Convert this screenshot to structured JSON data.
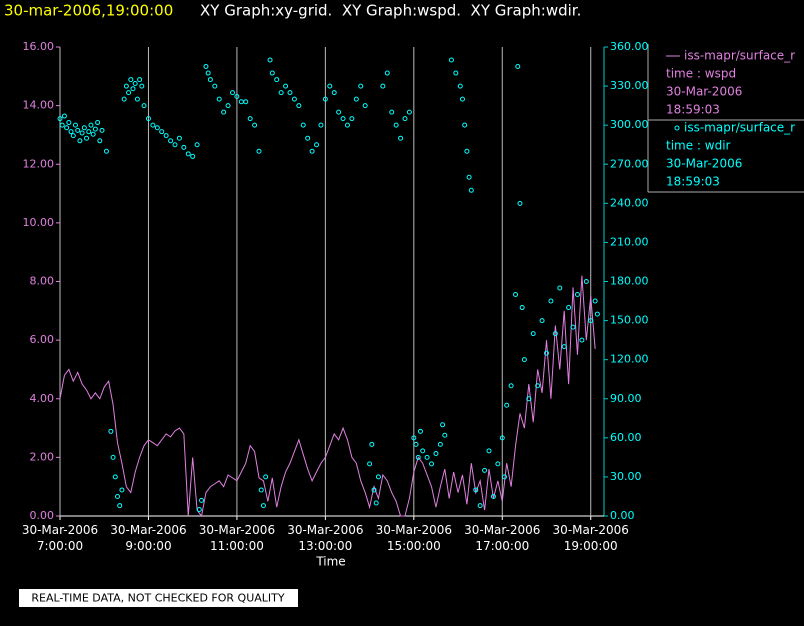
{
  "chart_data": {
    "type": "line_scatter",
    "title_time": "30-mar-2006,19:00:00",
    "title": "XY Graph:xy-grid.  XY Graph:wspd.  XY Graph:wdir.",
    "x_label": "Time",
    "footer": "REAL-TIME DATA, NOT CHECKED FOR QUALITY",
    "xlim": [
      7,
      19.3
    ],
    "xticks": [
      {
        "value": 7,
        "label": "30-Mar-2006\n7:00:00"
      },
      {
        "value": 9,
        "label": "30-Mar-2006\n9:00:00"
      },
      {
        "value": 11,
        "label": "30-Mar-2006\n11:00:00"
      },
      {
        "value": 13,
        "label": "30-Mar-2006\n13:00:00"
      },
      {
        "value": 15,
        "label": "30-Mar-2006\n15:00:00"
      },
      {
        "value": 17,
        "label": "30-Mar-2006\n17:00:00"
      },
      {
        "value": 19,
        "label": "30-Mar-2006\n19:00:00"
      }
    ],
    "grid": true,
    "ylim": [
      0,
      16
    ],
    "yticks": [
      {
        "value": 0,
        "label": "0.00"
      },
      {
        "value": 2,
        "label": "2.00"
      },
      {
        "value": 4,
        "label": "4.00"
      },
      {
        "value": 6,
        "label": "6.00"
      },
      {
        "value": 8,
        "label": "8.00"
      },
      {
        "value": 10,
        "label": "10.00"
      },
      {
        "value": 12,
        "label": "12.00"
      },
      {
        "value": 14,
        "label": "14.00"
      },
      {
        "value": 16,
        "label": "16.00"
      }
    ],
    "y2lim": [
      0,
      360
    ],
    "y2ticks": [
      {
        "value": 0,
        "label": "0.00"
      },
      {
        "value": 30,
        "label": "30.00"
      },
      {
        "value": 60,
        "label": "60.00"
      },
      {
        "value": 90,
        "label": "90.00"
      },
      {
        "value": 120,
        "label": "120.00"
      },
      {
        "value": 150,
        "label": "150.00"
      },
      {
        "value": 180,
        "label": "180.00"
      },
      {
        "value": 210,
        "label": "210.00"
      },
      {
        "value": 240,
        "label": "240.00"
      },
      {
        "value": 270,
        "label": "270.00"
      },
      {
        "value": 300,
        "label": "300.00"
      },
      {
        "value": 330,
        "label": "330.00"
      },
      {
        "value": 360,
        "label": "360.00"
      }
    ],
    "series": [
      {
        "name": "iss-mapr/surface_r",
        "kind": "line",
        "axis": "y",
        "color": "#e080e0",
        "legend_lines": [
          "time : wspd",
          "30-Mar-2006",
          "18:59:03"
        ],
        "x": [
          7.0,
          7.1,
          7.2,
          7.3,
          7.4,
          7.5,
          7.6,
          7.7,
          7.8,
          7.9,
          8.0,
          8.1,
          8.2,
          8.3,
          8.4,
          8.5,
          8.6,
          8.7,
          8.8,
          8.9,
          9.0,
          9.1,
          9.2,
          9.3,
          9.4,
          9.5,
          9.6,
          9.7,
          9.8,
          9.9,
          10.0,
          10.1,
          10.2,
          10.3,
          10.4,
          10.5,
          10.6,
          10.7,
          10.8,
          10.9,
          11.0,
          11.1,
          11.2,
          11.3,
          11.4,
          11.5,
          11.6,
          11.7,
          11.8,
          11.9,
          12.0,
          12.1,
          12.2,
          12.3,
          12.4,
          12.5,
          12.6,
          12.7,
          12.8,
          12.9,
          13.0,
          13.1,
          13.2,
          13.3,
          13.4,
          13.5,
          13.6,
          13.7,
          13.8,
          13.9,
          14.0,
          14.1,
          14.2,
          14.3,
          14.4,
          14.5,
          14.6,
          14.7,
          14.8,
          14.9,
          15.0,
          15.1,
          15.2,
          15.3,
          15.4,
          15.5,
          15.6,
          15.7,
          15.8,
          15.9,
          16.0,
          16.1,
          16.2,
          16.3,
          16.4,
          16.5,
          16.6,
          16.7,
          16.8,
          16.9,
          17.0,
          17.1,
          17.2,
          17.3,
          17.4,
          17.5,
          17.6,
          17.7,
          17.8,
          17.9,
          18.0,
          18.1,
          18.2,
          18.3,
          18.4,
          18.5,
          18.6,
          18.7,
          18.8,
          18.9,
          19.0,
          19.1
        ],
        "values": [
          4.0,
          4.8,
          5.0,
          4.6,
          4.9,
          4.5,
          4.3,
          4.0,
          4.2,
          4.0,
          4.4,
          4.6,
          3.8,
          2.5,
          1.8,
          1.0,
          0.8,
          1.5,
          2.0,
          2.4,
          2.6,
          2.5,
          2.4,
          2.6,
          2.8,
          2.7,
          2.9,
          3.0,
          2.8,
          0.0,
          2.0,
          0.2,
          0.0,
          0.8,
          1.0,
          1.1,
          1.2,
          1.0,
          1.4,
          1.3,
          1.2,
          1.5,
          1.8,
          2.4,
          2.2,
          1.3,
          1.2,
          0.5,
          1.3,
          0.3,
          1.0,
          1.5,
          1.8,
          2.2,
          2.6,
          2.1,
          1.6,
          1.2,
          1.5,
          1.8,
          2.0,
          2.4,
          2.8,
          2.6,
          3.0,
          2.6,
          2.0,
          1.8,
          1.2,
          0.8,
          0.3,
          1.0,
          0.6,
          1.4,
          1.2,
          0.8,
          0.5,
          0.0,
          0.0,
          0.6,
          1.5,
          2.0,
          1.8,
          1.4,
          1.0,
          0.3,
          1.0,
          1.6,
          0.6,
          1.5,
          0.8,
          1.4,
          0.4,
          1.8,
          0.8,
          1.2,
          0.2,
          1.6,
          0.6,
          1.2,
          0.5,
          1.8,
          1.0,
          2.4,
          3.5,
          3.0,
          4.5,
          3.2,
          5.0,
          4.2,
          6.0,
          4.0,
          6.5,
          5.0,
          7.0,
          4.5,
          7.8,
          5.5,
          8.2,
          6.0,
          7.5,
          5.7
        ]
      },
      {
        "name": "iss-mapr/surface_r",
        "kind": "scatter",
        "axis": "y2",
        "color": "#00ffff",
        "legend_lines": [
          "time : wdir",
          "30-Mar-2006",
          "18:59:03"
        ],
        "x": [
          7.0,
          7.05,
          7.1,
          7.15,
          7.2,
          7.25,
          7.3,
          7.35,
          7.4,
          7.45,
          7.5,
          7.55,
          7.6,
          7.65,
          7.7,
          7.75,
          7.8,
          7.85,
          7.9,
          7.95,
          8.05,
          8.15,
          8.2,
          8.25,
          8.3,
          8.35,
          8.4,
          8.45,
          8.5,
          8.55,
          8.6,
          8.65,
          8.7,
          8.75,
          8.8,
          8.85,
          8.9,
          9.0,
          9.1,
          9.2,
          9.3,
          9.4,
          9.5,
          9.6,
          9.7,
          9.8,
          9.9,
          10.0,
          10.1,
          10.15,
          10.2,
          10.3,
          10.35,
          10.4,
          10.5,
          10.6,
          10.7,
          10.8,
          10.9,
          11.0,
          11.1,
          11.2,
          11.3,
          11.4,
          11.5,
          11.55,
          11.6,
          11.65,
          11.75,
          11.8,
          11.9,
          12.0,
          12.1,
          12.2,
          12.3,
          12.4,
          12.5,
          12.6,
          12.7,
          12.8,
          12.9,
          13.0,
          13.1,
          13.2,
          13.3,
          13.4,
          13.5,
          13.6,
          13.7,
          13.8,
          13.9,
          14.0,
          14.05,
          14.1,
          14.15,
          14.2,
          14.3,
          14.4,
          14.5,
          14.6,
          14.7,
          14.8,
          14.9,
          15.0,
          15.05,
          15.1,
          15.15,
          15.2,
          15.3,
          15.4,
          15.5,
          15.6,
          15.65,
          15.7,
          15.85,
          15.95,
          16.05,
          16.1,
          16.15,
          16.2,
          16.25,
          16.3,
          16.4,
          16.5,
          16.6,
          16.7,
          16.8,
          16.9,
          17.0,
          17.05,
          17.1,
          17.2,
          17.3,
          17.35,
          17.4,
          17.45,
          17.5,
          17.6,
          17.7,
          17.8,
          17.9,
          18.0,
          18.1,
          18.2,
          18.3,
          18.4,
          18.5,
          18.6,
          18.7,
          18.8,
          18.9,
          19.0,
          19.1,
          19.15
        ],
        "values": [
          305,
          300,
          307,
          298,
          302,
          295,
          292,
          300,
          296,
          288,
          294,
          298,
          290,
          295,
          300,
          293,
          297,
          302,
          288,
          296,
          280,
          65,
          45,
          30,
          15,
          8,
          20,
          320,
          330,
          325,
          335,
          328,
          332,
          320,
          335,
          330,
          315,
          305,
          300,
          298,
          295,
          292,
          288,
          285,
          290,
          283,
          278,
          276,
          285,
          5,
          12,
          345,
          340,
          335,
          330,
          320,
          310,
          315,
          325,
          322,
          318,
          318,
          305,
          300,
          280,
          20,
          8,
          30,
          350,
          340,
          335,
          325,
          330,
          325,
          320,
          315,
          300,
          290,
          280,
          285,
          300,
          320,
          330,
          325,
          310,
          305,
          300,
          305,
          320,
          330,
          315,
          40,
          55,
          20,
          10,
          30,
          330,
          340,
          310,
          300,
          290,
          305,
          310,
          60,
          55,
          45,
          65,
          50,
          45,
          40,
          48,
          55,
          70,
          62,
          350,
          340,
          330,
          320,
          300,
          280,
          260,
          250,
          20,
          8,
          35,
          50,
          15,
          40,
          60,
          30,
          85,
          100,
          170,
          345,
          240,
          160,
          120,
          90,
          140,
          100,
          150,
          125,
          165,
          140,
          175,
          130,
          160,
          145,
          170,
          135,
          180,
          150,
          165,
          155
        ]
      }
    ]
  }
}
